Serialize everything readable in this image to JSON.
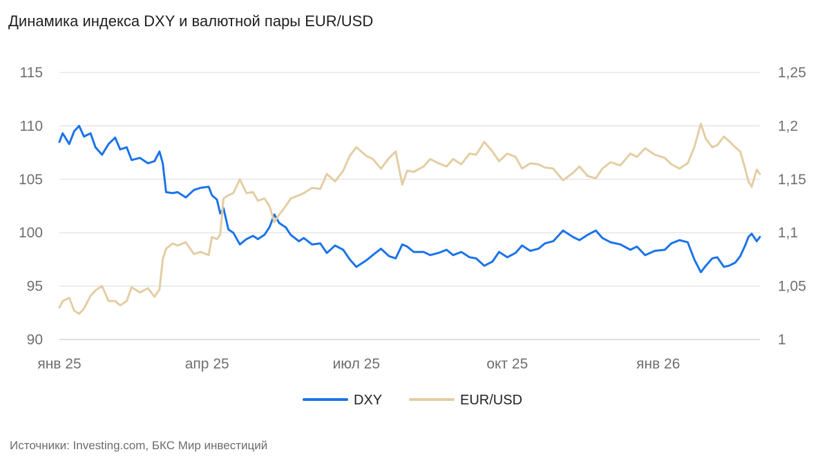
{
  "title": "Динамика индекса DXY и валютной пары EUR/USD",
  "source": "Источники: Investing.com, БКС Мир инвестиций",
  "colors": {
    "dxy": "#1a73e8",
    "eurusd": "#e3cda3",
    "grid": "#d9d9d9",
    "axis_text": "#6e6e6e"
  },
  "chart_data": {
    "type": "line",
    "title": "Динамика индекса DXY и валютной пары EUR/USD",
    "x_range": [
      "2025-01-01",
      "2026-03-04"
    ],
    "x_ticks": [
      {
        "date": "2025-01-01",
        "label": "янв 25"
      },
      {
        "date": "2025-04-01",
        "label": "апр 25"
      },
      {
        "date": "2025-07-01",
        "label": "июл 25"
      },
      {
        "date": "2025-10-01",
        "label": "окт 25"
      },
      {
        "date": "2026-01-01",
        "label": "янв 26"
      }
    ],
    "y_left": {
      "min": 90,
      "max": 115,
      "ticks": [
        "90",
        "95",
        "100",
        "105",
        "110",
        "115"
      ]
    },
    "y_right": {
      "min": 1,
      "max": 1.25,
      "ticks": [
        "1",
        "1,05",
        "1,1",
        "1,15",
        "1,2",
        "1,25"
      ]
    },
    "grid": true,
    "legend_position": "bottom-center",
    "series": [
      {
        "name": "DXY",
        "axis": "left",
        "color": "#1a73e8",
        "points": [
          [
            "2025-01-01",
            108.5
          ],
          [
            "2025-01-03",
            109.3
          ],
          [
            "2025-01-07",
            108.3
          ],
          [
            "2025-01-10",
            109.5
          ],
          [
            "2025-01-13",
            110.0
          ],
          [
            "2025-01-16",
            109.0
          ],
          [
            "2025-01-20",
            109.3
          ],
          [
            "2025-01-23",
            108.0
          ],
          [
            "2025-01-27",
            107.3
          ],
          [
            "2025-01-31",
            108.3
          ],
          [
            "2025-02-04",
            108.9
          ],
          [
            "2025-02-07",
            107.8
          ],
          [
            "2025-02-11",
            108.0
          ],
          [
            "2025-02-14",
            106.8
          ],
          [
            "2025-02-19",
            107.0
          ],
          [
            "2025-02-24",
            106.5
          ],
          [
            "2025-02-28",
            106.7
          ],
          [
            "2025-03-03",
            107.6
          ],
          [
            "2025-03-05",
            106.5
          ],
          [
            "2025-03-07",
            103.8
          ],
          [
            "2025-03-11",
            103.7
          ],
          [
            "2025-03-14",
            103.8
          ],
          [
            "2025-03-19",
            103.3
          ],
          [
            "2025-03-24",
            104.0
          ],
          [
            "2025-03-28",
            104.2
          ],
          [
            "2025-04-02",
            104.3
          ],
          [
            "2025-04-04",
            103.5
          ],
          [
            "2025-04-07",
            103.1
          ],
          [
            "2025-04-09",
            101.8
          ],
          [
            "2025-04-11",
            102.3
          ],
          [
            "2025-04-14",
            100.3
          ],
          [
            "2025-04-17",
            100.0
          ],
          [
            "2025-04-21",
            98.9
          ],
          [
            "2025-04-25",
            99.4
          ],
          [
            "2025-04-29",
            99.7
          ],
          [
            "2025-05-02",
            99.4
          ],
          [
            "2025-05-06",
            99.8
          ],
          [
            "2025-05-09",
            100.5
          ],
          [
            "2025-05-12",
            101.7
          ],
          [
            "2025-05-15",
            100.9
          ],
          [
            "2025-05-19",
            100.5
          ],
          [
            "2025-05-22",
            99.8
          ],
          [
            "2025-05-27",
            99.2
          ],
          [
            "2025-05-30",
            99.5
          ],
          [
            "2025-06-04",
            98.9
          ],
          [
            "2025-06-09",
            99.0
          ],
          [
            "2025-06-13",
            98.1
          ],
          [
            "2025-06-18",
            98.8
          ],
          [
            "2025-06-23",
            98.4
          ],
          [
            "2025-06-27",
            97.5
          ],
          [
            "2025-07-01",
            96.8
          ],
          [
            "2025-07-07",
            97.4
          ],
          [
            "2025-07-11",
            97.9
          ],
          [
            "2025-07-16",
            98.5
          ],
          [
            "2025-07-21",
            97.8
          ],
          [
            "2025-07-25",
            97.6
          ],
          [
            "2025-07-29",
            98.9
          ],
          [
            "2025-08-01",
            98.7
          ],
          [
            "2025-08-05",
            98.2
          ],
          [
            "2025-08-11",
            98.2
          ],
          [
            "2025-08-15",
            97.9
          ],
          [
            "2025-08-20",
            98.1
          ],
          [
            "2025-08-25",
            98.4
          ],
          [
            "2025-08-29",
            97.9
          ],
          [
            "2025-09-03",
            98.2
          ],
          [
            "2025-09-08",
            97.7
          ],
          [
            "2025-09-12",
            97.6
          ],
          [
            "2025-09-17",
            96.9
          ],
          [
            "2025-09-22",
            97.3
          ],
          [
            "2025-09-26",
            98.2
          ],
          [
            "2025-10-01",
            97.7
          ],
          [
            "2025-10-06",
            98.1
          ],
          [
            "2025-10-10",
            98.8
          ],
          [
            "2025-10-15",
            98.3
          ],
          [
            "2025-10-20",
            98.5
          ],
          [
            "2025-10-24",
            99.0
          ],
          [
            "2025-10-29",
            99.2
          ],
          [
            "2025-11-04",
            100.2
          ],
          [
            "2025-11-10",
            99.6
          ],
          [
            "2025-11-14",
            99.3
          ],
          [
            "2025-11-19",
            99.8
          ],
          [
            "2025-11-24",
            100.2
          ],
          [
            "2025-11-28",
            99.5
          ],
          [
            "2025-12-03",
            99.1
          ],
          [
            "2025-12-09",
            98.9
          ],
          [
            "2025-12-15",
            98.4
          ],
          [
            "2025-12-19",
            98.7
          ],
          [
            "2025-12-24",
            97.9
          ],
          [
            "2025-12-30",
            98.3
          ],
          [
            "2026-01-05",
            98.4
          ],
          [
            "2026-01-09",
            99.0
          ],
          [
            "2026-01-14",
            99.3
          ],
          [
            "2026-01-19",
            99.1
          ],
          [
            "2026-01-23",
            97.5
          ],
          [
            "2026-01-27",
            96.3
          ],
          [
            "2026-01-30",
            96.9
          ],
          [
            "2026-02-03",
            97.6
          ],
          [
            "2026-02-06",
            97.7
          ],
          [
            "2026-02-10",
            96.8
          ],
          [
            "2026-02-13",
            96.9
          ],
          [
            "2026-02-17",
            97.2
          ],
          [
            "2026-02-20",
            97.8
          ],
          [
            "2026-02-23",
            98.8
          ],
          [
            "2026-02-25",
            99.6
          ],
          [
            "2026-02-27",
            99.9
          ],
          [
            "2026-03-02",
            99.2
          ],
          [
            "2026-03-04",
            99.6
          ]
        ]
      },
      {
        "name": "EUR/USD",
        "axis": "right",
        "color": "#e3cda3",
        "points": [
          [
            "2025-01-01",
            1.03
          ],
          [
            "2025-01-03",
            1.036
          ],
          [
            "2025-01-07",
            1.039
          ],
          [
            "2025-01-10",
            1.027
          ],
          [
            "2025-01-13",
            1.024
          ],
          [
            "2025-01-16",
            1.029
          ],
          [
            "2025-01-20",
            1.041
          ],
          [
            "2025-01-23",
            1.046
          ],
          [
            "2025-01-27",
            1.05
          ],
          [
            "2025-01-31",
            1.036
          ],
          [
            "2025-02-04",
            1.036
          ],
          [
            "2025-02-07",
            1.032
          ],
          [
            "2025-02-11",
            1.036
          ],
          [
            "2025-02-14",
            1.049
          ],
          [
            "2025-02-19",
            1.044
          ],
          [
            "2025-02-24",
            1.048
          ],
          [
            "2025-02-28",
            1.04
          ],
          [
            "2025-03-03",
            1.047
          ],
          [
            "2025-03-05",
            1.075
          ],
          [
            "2025-03-07",
            1.085
          ],
          [
            "2025-03-11",
            1.09
          ],
          [
            "2025-03-14",
            1.088
          ],
          [
            "2025-03-19",
            1.091
          ],
          [
            "2025-03-24",
            1.08
          ],
          [
            "2025-03-28",
            1.082
          ],
          [
            "2025-04-02",
            1.079
          ],
          [
            "2025-04-04",
            1.096
          ],
          [
            "2025-04-07",
            1.094
          ],
          [
            "2025-04-09",
            1.098
          ],
          [
            "2025-04-11",
            1.132
          ],
          [
            "2025-04-14",
            1.135
          ],
          [
            "2025-04-17",
            1.137
          ],
          [
            "2025-04-21",
            1.15
          ],
          [
            "2025-04-25",
            1.137
          ],
          [
            "2025-04-29",
            1.138
          ],
          [
            "2025-05-02",
            1.13
          ],
          [
            "2025-05-06",
            1.132
          ],
          [
            "2025-05-09",
            1.125
          ],
          [
            "2025-05-12",
            1.11
          ],
          [
            "2025-05-15",
            1.117
          ],
          [
            "2025-05-19",
            1.125
          ],
          [
            "2025-05-22",
            1.132
          ],
          [
            "2025-05-27",
            1.135
          ],
          [
            "2025-05-30",
            1.137
          ],
          [
            "2025-06-04",
            1.142
          ],
          [
            "2025-06-09",
            1.141
          ],
          [
            "2025-06-13",
            1.155
          ],
          [
            "2025-06-18",
            1.148
          ],
          [
            "2025-06-23",
            1.158
          ],
          [
            "2025-06-27",
            1.172
          ],
          [
            "2025-07-01",
            1.18
          ],
          [
            "2025-07-07",
            1.172
          ],
          [
            "2025-07-11",
            1.169
          ],
          [
            "2025-07-16",
            1.16
          ],
          [
            "2025-07-21",
            1.17
          ],
          [
            "2025-07-25",
            1.176
          ],
          [
            "2025-07-29",
            1.145
          ],
          [
            "2025-08-01",
            1.158
          ],
          [
            "2025-08-05",
            1.157
          ],
          [
            "2025-08-11",
            1.162
          ],
          [
            "2025-08-15",
            1.169
          ],
          [
            "2025-08-20",
            1.165
          ],
          [
            "2025-08-25",
            1.162
          ],
          [
            "2025-08-29",
            1.169
          ],
          [
            "2025-09-03",
            1.164
          ],
          [
            "2025-09-08",
            1.174
          ],
          [
            "2025-09-12",
            1.173
          ],
          [
            "2025-09-17",
            1.185
          ],
          [
            "2025-09-22",
            1.176
          ],
          [
            "2025-09-26",
            1.167
          ],
          [
            "2025-10-01",
            1.174
          ],
          [
            "2025-10-06",
            1.171
          ],
          [
            "2025-10-10",
            1.16
          ],
          [
            "2025-10-15",
            1.165
          ],
          [
            "2025-10-20",
            1.164
          ],
          [
            "2025-10-24",
            1.161
          ],
          [
            "2025-10-29",
            1.16
          ],
          [
            "2025-11-04",
            1.149
          ],
          [
            "2025-11-10",
            1.156
          ],
          [
            "2025-11-14",
            1.162
          ],
          [
            "2025-11-19",
            1.153
          ],
          [
            "2025-11-24",
            1.151
          ],
          [
            "2025-11-28",
            1.16
          ],
          [
            "2025-12-03",
            1.166
          ],
          [
            "2025-12-09",
            1.163
          ],
          [
            "2025-12-15",
            1.174
          ],
          [
            "2025-12-19",
            1.171
          ],
          [
            "2025-12-24",
            1.179
          ],
          [
            "2025-12-30",
            1.173
          ],
          [
            "2026-01-05",
            1.17
          ],
          [
            "2026-01-09",
            1.164
          ],
          [
            "2026-01-14",
            1.16
          ],
          [
            "2026-01-19",
            1.165
          ],
          [
            "2026-01-23",
            1.18
          ],
          [
            "2026-01-27",
            1.202
          ],
          [
            "2026-01-30",
            1.188
          ],
          [
            "2026-02-03",
            1.18
          ],
          [
            "2026-02-06",
            1.182
          ],
          [
            "2026-02-10",
            1.19
          ],
          [
            "2026-02-13",
            1.186
          ],
          [
            "2026-02-17",
            1.18
          ],
          [
            "2026-02-20",
            1.176
          ],
          [
            "2026-02-23",
            1.16
          ],
          [
            "2026-02-25",
            1.148
          ],
          [
            "2026-02-27",
            1.143
          ],
          [
            "2026-03-02",
            1.159
          ],
          [
            "2026-03-04",
            1.155
          ]
        ]
      }
    ]
  }
}
